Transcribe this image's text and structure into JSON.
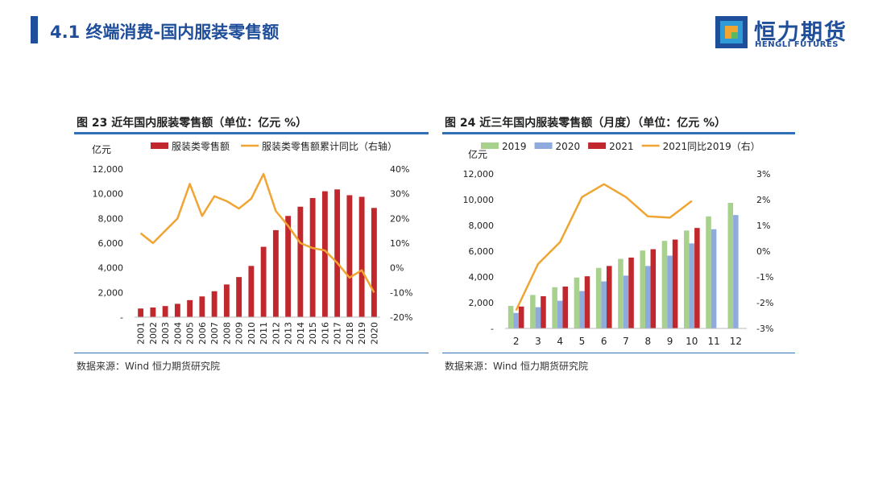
{
  "slide": {
    "title": "4.1 终端消费-国内服装零售额"
  },
  "logo": {
    "cn": "恒力期货",
    "en": "HENGLI FUTURES"
  },
  "colors": {
    "brand": "#1f4e9a",
    "bar_red": "#c0282d",
    "line_orange": "#f0a431",
    "bar_green": "#a9d18e",
    "bar_blue": "#8faadc",
    "rule": "#2f6fb5"
  },
  "figure1": {
    "title": "图 23 近年国内服装零售额（单位：亿元 %）",
    "source": "数据来源：Wind 恒力期货研究院"
  },
  "figure2": {
    "title": "图 24 近三年国内服装零售额（月度）（单位：亿元 %）",
    "source": "数据来源：Wind 恒力期货研究院"
  },
  "chart_data": [
    {
      "type": "bar",
      "y_unit": "亿元",
      "categories": [
        "2001",
        "2002",
        "2003",
        "2004",
        "2005",
        "2006",
        "2007",
        "2008",
        "2009",
        "2010",
        "2011",
        "2012",
        "2013",
        "2014",
        "2015",
        "2016",
        "2017",
        "2018",
        "2019",
        "2020"
      ],
      "series": [
        {
          "name": "服装类零售额",
          "type": "bar",
          "axis": "left",
          "values": [
            700,
            780,
            900,
            1080,
            1380,
            1680,
            2100,
            2650,
            3250,
            4150,
            5700,
            7050,
            8200,
            8950,
            9650,
            10200,
            10350,
            9880,
            9750,
            8850
          ]
        },
        {
          "name": "服装类零售额累计同比（右轴）",
          "type": "line",
          "axis": "right",
          "values": [
            14,
            10,
            15,
            20,
            34,
            21,
            29,
            27,
            24,
            28,
            38,
            23,
            17,
            10,
            8,
            7,
            2,
            -4,
            -1,
            -10
          ]
        }
      ],
      "ylim": [
        0,
        12000
      ],
      "y_ticks": [
        "-",
        "2,000",
        "4,000",
        "6,000",
        "8,000",
        "10,000",
        "12,000"
      ],
      "y2lim": [
        -20,
        40
      ],
      "y2_ticks": [
        "-20%",
        "-10%",
        "0%",
        "10%",
        "20%",
        "30%",
        "40%"
      ],
      "legend": "top"
    },
    {
      "type": "bar",
      "y_unit": "亿元",
      "categories": [
        "2",
        "3",
        "4",
        "5",
        "6",
        "7",
        "8",
        "9",
        "10",
        "11",
        "12"
      ],
      "series": [
        {
          "name": "2019",
          "type": "bar",
          "axis": "left",
          "values": [
            1750,
            2600,
            3200,
            3950,
            4700,
            5400,
            6050,
            6800,
            7600,
            8700,
            9750
          ]
        },
        {
          "name": "2020",
          "type": "bar",
          "axis": "left",
          "values": [
            1200,
            1650,
            2150,
            2900,
            3650,
            4100,
            4850,
            5650,
            6600,
            7700,
            8800
          ]
        },
        {
          "name": "2021",
          "type": "bar",
          "axis": "left",
          "values": [
            1700,
            2500,
            3250,
            4050,
            4850,
            5500,
            6150,
            6900,
            7800,
            null,
            null
          ]
        },
        {
          "name": "2021同比2019（右）",
          "type": "line",
          "axis": "right",
          "values": [
            -2.3,
            -0.5,
            0.35,
            2.1,
            2.6,
            2.1,
            1.35,
            1.3,
            1.95,
            null,
            null
          ]
        }
      ],
      "ylim": [
        0,
        12000
      ],
      "y_ticks": [
        "-",
        "2,000",
        "4,000",
        "6,000",
        "8,000",
        "10,000",
        "12,000"
      ],
      "y2lim": [
        -3,
        3
      ],
      "y2_ticks": [
        "-3%",
        "-2%",
        "-1%",
        "0%",
        "1%",
        "2%",
        "3%"
      ],
      "legend": "top"
    }
  ]
}
